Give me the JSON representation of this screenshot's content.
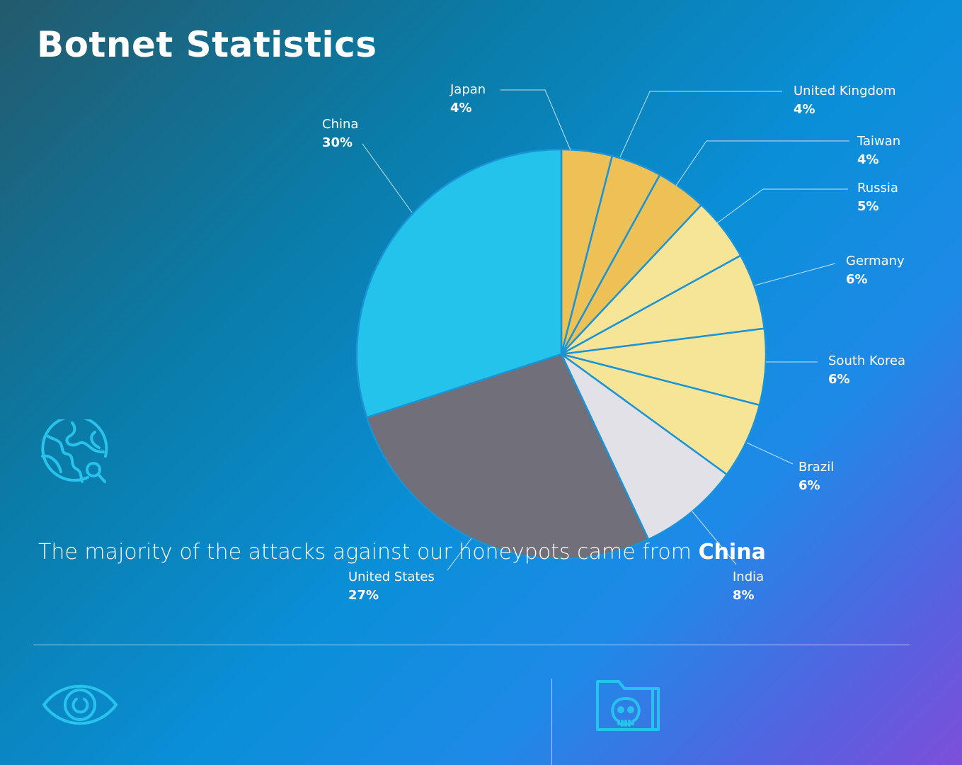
{
  "title": "Botnet Statistics",
  "caption": {
    "text": "The majority of the attacks against our honeypots came from ",
    "highlight": "China"
  },
  "icons": {
    "globe": "globe-search-icon",
    "eye": "eye-icon",
    "folder": "folder-skull-icon"
  },
  "chart_data": {
    "type": "pie",
    "title": "",
    "start": "top, clockwise",
    "labels": [
      "Japan",
      "United Kingdom",
      "Taiwan",
      "Russia",
      "Germany",
      "South Korea",
      "Brazil",
      "India",
      "United States",
      "China"
    ],
    "values": [
      4,
      4,
      4,
      5,
      6,
      6,
      6,
      8,
      27,
      30
    ],
    "value_labels": [
      "4%",
      "4%",
      "4%",
      "5%",
      "6%",
      "6%",
      "6%",
      "8%",
      "27%",
      "30%"
    ],
    "colors": [
      "#EDC156",
      "#EDC156",
      "#EDC156",
      "#F7E597",
      "#F7E597",
      "#F7E597",
      "#F7E597",
      "#E1E1E7",
      "#716F79",
      "#24C3EB"
    ]
  }
}
